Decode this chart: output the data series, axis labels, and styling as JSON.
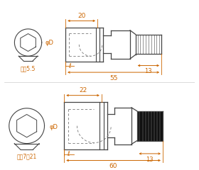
{
  "bg_color": "#ffffff",
  "line_color": "#444444",
  "dim_color": "#cc6600",
  "dashed_color": "#777777",
  "top": {
    "label_taihen": "対辺5.5",
    "label_phid": "φD",
    "dim_20": "20",
    "dim_55": "55",
    "dim_13": "13",
    "dim_l": "ℓ"
  },
  "bottom": {
    "label_taihen": "対辺7～21",
    "label_phid": "φD",
    "dim_22": "22",
    "dim_60": "60",
    "dim_13": "13",
    "dim_l": "ℓ"
  }
}
